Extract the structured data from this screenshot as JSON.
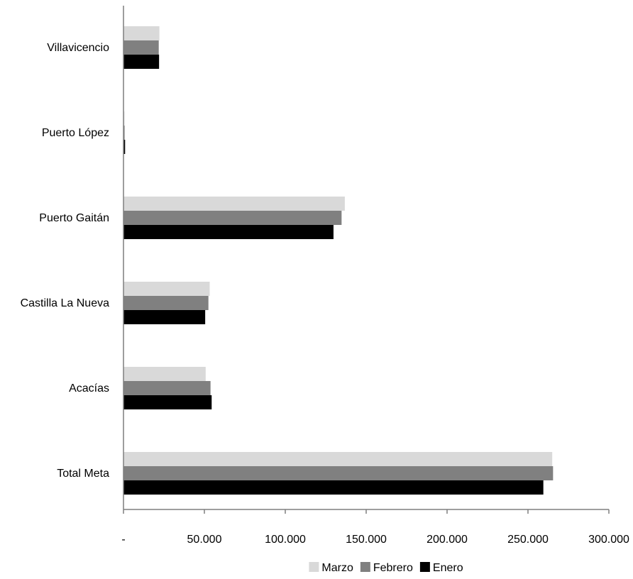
{
  "chart_data": {
    "type": "bar",
    "orientation": "horizontal",
    "categories": [
      "Total Meta",
      "Acacías",
      "Castilla La Nueva",
      "Puerto Gaitán",
      "Puerto López",
      "Villavicencio"
    ],
    "series": [
      {
        "name": "Enero",
        "color": "#000000",
        "values": [
          259500,
          54500,
          50500,
          129800,
          1000,
          22000
        ]
      },
      {
        "name": "Febrero",
        "color": "#808080",
        "values": [
          265500,
          53800,
          52500,
          134800,
          700,
          21800
        ]
      },
      {
        "name": "Marzo",
        "color": "#d9d9d9",
        "values": [
          265000,
          50800,
          53300,
          136800,
          600,
          22200
        ]
      }
    ],
    "xlim": [
      0,
      300000
    ],
    "x_ticks": [
      0,
      50000,
      100000,
      150000,
      200000,
      250000,
      300000
    ],
    "x_tick_labels": [
      "-",
      "50.000",
      "100.000",
      "150.000",
      "200.000",
      "250.000",
      "300.000"
    ],
    "legend": {
      "position": "bottom",
      "order": [
        "Marzo",
        "Febrero",
        "Enero"
      ]
    },
    "grid": false,
    "title": "",
    "xlabel": "",
    "ylabel": ""
  }
}
